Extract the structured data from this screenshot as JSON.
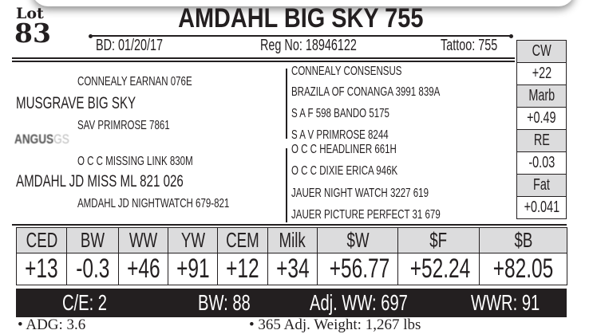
{
  "lot": {
    "label": "Lot",
    "number": "83"
  },
  "title": "AMDAHL BIG SKY 755",
  "info": {
    "bd": "BD: 01/20/17",
    "reg": "Reg No: 18946122",
    "tattoo": "Tattoo: 755"
  },
  "pedigree": {
    "sire": "MUSGRAVE BIG SKY",
    "sire_sire": "CONNEALY EARNAN 076E",
    "sire_dam": "SAV PRIMROSE 7861",
    "dam": "AMDAHL JD MISS ML 821 026",
    "dam_sire": "O C C MISSING LINK 830M",
    "dam_dam": "AMDAHL JD NIGHTWATCH 679-821",
    "right": [
      "CONNEALY CONSENSUS",
      "BRAZILA OF CONANGA 3991 839A",
      "S A F 598 BANDO 5175",
      "S A V PRIMROSE 8244",
      "O C C HEADLINER 661H",
      "O C C DIXIE ERICA 946K",
      "JAUER NIGHT WATCH 3227 619",
      "JAUER PICTURE PERFECT 31 679"
    ]
  },
  "logo": {
    "text": "ANGUS",
    "suffix": "GS"
  },
  "carcass": [
    {
      "label": "CW",
      "value": "+22"
    },
    {
      "label": "Marb",
      "value": "+0.49"
    },
    {
      "label": "RE",
      "value": "-0.03"
    },
    {
      "label": "Fat",
      "value": "+0.041"
    }
  ],
  "epds": {
    "headers": [
      "CED",
      "BW",
      "WW",
      "YW",
      "CEM",
      "Milk",
      "$W",
      "$F",
      "$B"
    ],
    "values": [
      "+13",
      "-0.3",
      "+46",
      "+91",
      "+12",
      "+34",
      "+56.77",
      "+52.24",
      "+82.05"
    ]
  },
  "stats": {
    "ce": "C/E: 2",
    "bw": "BW: 88",
    "adj_ww": "Adj. WW: 697",
    "wwr": "WWR: 91"
  },
  "footer": {
    "adg": "• ADG: 3.6",
    "weight": "• 365 Adj. Weight: 1,267 lbs"
  },
  "colors": {
    "ink": "#231f20",
    "header_fill": "#dcdcdd"
  }
}
